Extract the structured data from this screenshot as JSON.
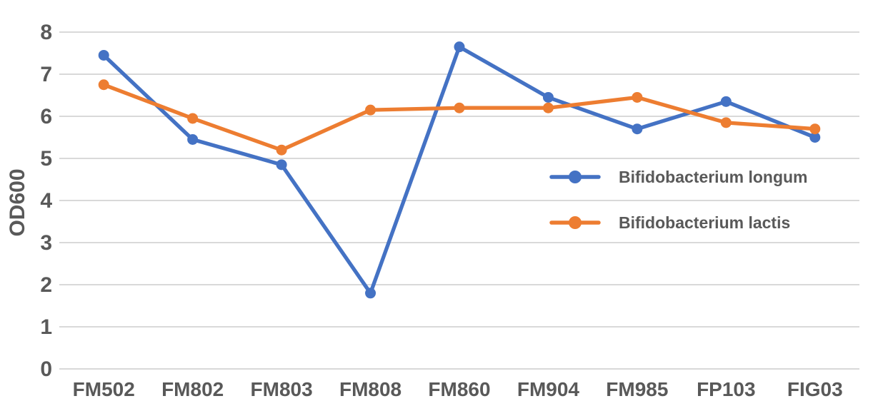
{
  "chart_data": {
    "type": "line",
    "title": "",
    "xlabel": "",
    "ylabel": "OD600",
    "categories": [
      "FM502",
      "FM802",
      "FM803",
      "FM808",
      "FM860",
      "FM904",
      "FM985",
      "FP103",
      "FIG03"
    ],
    "series": [
      {
        "name": "Bifidobacterium longum",
        "color": "#4472C4",
        "values": [
          7.45,
          5.45,
          4.85,
          1.8,
          7.65,
          6.45,
          5.7,
          6.35,
          5.5
        ]
      },
      {
        "name": "Bifidobacterium lactis",
        "color": "#ED7D31",
        "values": [
          6.75,
          5.95,
          5.2,
          6.15,
          6.2,
          6.2,
          6.45,
          5.85,
          5.7
        ]
      }
    ],
    "ylim": [
      0,
      8
    ],
    "yticks": [
      0,
      1,
      2,
      3,
      4,
      5,
      6,
      7,
      8
    ],
    "grid": "horizontal",
    "marker": "circle",
    "legend_position": "center-right"
  },
  "style_colors": {
    "background": "#FFFFFF",
    "gridline": "#D9D9D9",
    "axis_text": "#595959"
  }
}
